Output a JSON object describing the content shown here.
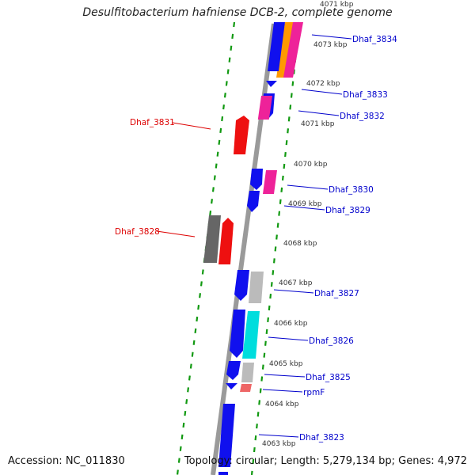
{
  "title": "Desulfitobacterium hafniense DCB-2, complete genome",
  "footer": {
    "accession": "Accession: NC_011830",
    "topology": "Topology: circular; Length: 5,279,134 bp; Genes: 4,972"
  },
  "colors": {
    "backbone": "#9a9a9a",
    "tick": "#119911",
    "blue_gene": "#1010ee",
    "red_gene": "#ee1010",
    "magenta_gene": "#ee2299",
    "orange_gene": "#ff9900",
    "cyan_gene": "#00dddd",
    "gray_gene": "#bbbbbb",
    "darkgray_gene": "#666666",
    "salmon_gene": "#ee6666",
    "label_blue": "#0000cc",
    "label_red": "#dd0000"
  },
  "kbp_marks": [
    {
      "label": "4071 kbp"
    },
    {
      "label": "4073 kbp"
    },
    {
      "label": "4072 kbp"
    },
    {
      "label": "4071 kbp"
    },
    {
      "label": "4070 kbp"
    },
    {
      "label": "4069 kbp"
    },
    {
      "label": "4068 kbp"
    },
    {
      "label": "4067 kbp"
    },
    {
      "label": "4066 kbp"
    },
    {
      "label": "4065 kbp"
    },
    {
      "label": "4064 kbp"
    },
    {
      "label": "4063 kbp"
    }
  ],
  "gene_labels": [
    {
      "text": "Dhaf_3834",
      "color": "blue"
    },
    {
      "text": "Dhaf_3833",
      "color": "blue"
    },
    {
      "text": "Dhaf_3832",
      "color": "blue"
    },
    {
      "text": "Dhaf_3831",
      "color": "red"
    },
    {
      "text": "Dhaf_3830",
      "color": "blue"
    },
    {
      "text": "Dhaf_3829",
      "color": "blue"
    },
    {
      "text": "Dhaf_3828",
      "color": "red"
    },
    {
      "text": "Dhaf_3827",
      "color": "blue"
    },
    {
      "text": "Dhaf_3826",
      "color": "blue"
    },
    {
      "text": "Dhaf_3825",
      "color": "blue"
    },
    {
      "text": "rpmF",
      "color": "blue"
    },
    {
      "text": "Dhaf_3823",
      "color": "blue"
    }
  ]
}
